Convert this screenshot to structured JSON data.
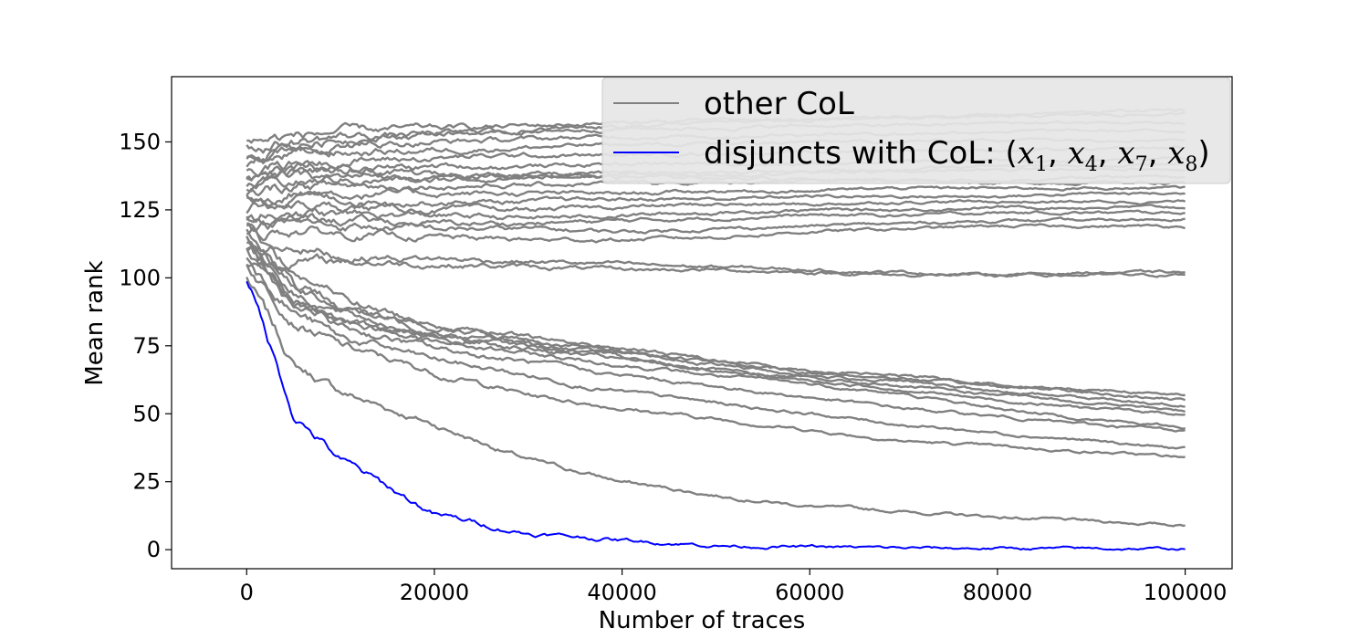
{
  "chart_data": {
    "type": "line",
    "title": "",
    "xlabel": "Number of traces",
    "ylabel": "Mean rank",
    "xlim": [
      -8000,
      105000
    ],
    "ylim": [
      -7,
      174
    ],
    "xticks": [
      0,
      20000,
      40000,
      60000,
      80000,
      100000
    ],
    "xtick_labels": [
      "0",
      "20000",
      "40000",
      "60000",
      "80000",
      "100000"
    ],
    "yticks": [
      0,
      25,
      50,
      75,
      100,
      125,
      150
    ],
    "ytick_labels": [
      "0",
      "25",
      "50",
      "75",
      "100",
      "125",
      "150"
    ],
    "grid": false,
    "legend": {
      "placement": "top-right",
      "entries": [
        {
          "label": "other CoL",
          "color": "#808080"
        },
        {
          "label_prefix": "disjuncts with CoL: (",
          "vars": [
            "x1",
            "x4",
            "x7",
            "x8"
          ],
          "label_suffix": ")",
          "color": "#0000ff"
        }
      ]
    },
    "x": [
      0,
      5000,
      10000,
      20000,
      30000,
      40000,
      50000,
      60000,
      70000,
      80000,
      90000,
      100000
    ],
    "series": [
      {
        "name": "disjuncts with CoL: (x1, x4, x7, x8)",
        "color": "#0000ff",
        "values": [
          100,
          50,
          33,
          13,
          6,
          3.5,
          1.5,
          1.0,
          0.6,
          0.5,
          0.4,
          0.3
        ]
      },
      {
        "group": "other CoL",
        "color": "#808080",
        "values": [
          100,
          68,
          58,
          46,
          33,
          25,
          20,
          16,
          14,
          12,
          10.5,
          9
        ]
      },
      {
        "group": "other CoL",
        "color": "#808080",
        "values": [
          105,
          85,
          75,
          65,
          57,
          52,
          48,
          44,
          40,
          38,
          36,
          34
        ]
      },
      {
        "group": "other CoL",
        "color": "#808080",
        "values": [
          108,
          88,
          78,
          70,
          64,
          58,
          54,
          50,
          46,
          43,
          40,
          37
        ]
      },
      {
        "group": "other CoL",
        "color": "#808080",
        "values": [
          110,
          90,
          82,
          74,
          69,
          64,
          60,
          56,
          52,
          49,
          46,
          44
        ]
      },
      {
        "group": "other CoL",
        "color": "#808080",
        "values": [
          112,
          93,
          85,
          76,
          72,
          68,
          64,
          61,
          57,
          52,
          48,
          45
        ]
      },
      {
        "group": "other CoL",
        "color": "#808080",
        "values": [
          115,
          95,
          87,
          79,
          74,
          70,
          66,
          62,
          59,
          55,
          52,
          50
        ]
      },
      {
        "group": "other CoL",
        "color": "#808080",
        "values": [
          113,
          92,
          84,
          78,
          75,
          71,
          66,
          63,
          60,
          57,
          54,
          51
        ]
      },
      {
        "group": "other CoL",
        "color": "#808080",
        "values": [
          118,
          98,
          90,
          80,
          76,
          72,
          68,
          64,
          62,
          58,
          56,
          53
        ]
      },
      {
        "group": "other CoL",
        "color": "#808080",
        "values": [
          120,
          102,
          93,
          82,
          78,
          74,
          70,
          66,
          64,
          61,
          58,
          55
        ]
      },
      {
        "group": "other CoL",
        "color": "#808080",
        "values": [
          116,
          97,
          88,
          83,
          77,
          73,
          69,
          65,
          63,
          60,
          59,
          57
        ]
      },
      {
        "group": "other CoL",
        "color": "#808080",
        "values": [
          105,
          106,
          106,
          105,
          104,
          103,
          103,
          102,
          101,
          101,
          101,
          101
        ]
      },
      {
        "group": "other CoL",
        "color": "#808080",
        "values": [
          110,
          112,
          108,
          107,
          106,
          105,
          104,
          103,
          102,
          101,
          102,
          102
        ]
      },
      {
        "group": "other CoL",
        "color": "#808080",
        "values": [
          115,
          118,
          116,
          115,
          114,
          114,
          115,
          117,
          118,
          119,
          119,
          119
        ]
      },
      {
        "group": "other CoL",
        "color": "#808080",
        "values": [
          118,
          120,
          119,
          118,
          118,
          117,
          118,
          119,
          120,
          121,
          121,
          122
        ]
      },
      {
        "group": "other CoL",
        "color": "#808080",
        "values": [
          120,
          122,
          121,
          120,
          120,
          121,
          122,
          123,
          123,
          124,
          124,
          124
        ]
      },
      {
        "group": "other CoL",
        "color": "#808080",
        "values": [
          122,
          124,
          123,
          123,
          122,
          123,
          124,
          125,
          125,
          126,
          126,
          126
        ]
      },
      {
        "group": "other CoL",
        "color": "#808080",
        "values": [
          125,
          127,
          126,
          125,
          125,
          126,
          127,
          127,
          128,
          128,
          128,
          128
        ]
      },
      {
        "group": "other CoL",
        "color": "#808080",
        "values": [
          128,
          130,
          129,
          128,
          128,
          129,
          129,
          130,
          130,
          130,
          131,
          131
        ]
      },
      {
        "group": "other CoL",
        "color": "#808080",
        "values": [
          130,
          132,
          131,
          131,
          131,
          131,
          132,
          132,
          133,
          133,
          133,
          133
        ]
      },
      {
        "group": "other CoL",
        "color": "#808080",
        "values": [
          132,
          134,
          134,
          134,
          134,
          135,
          135,
          136,
          136,
          136,
          137,
          137
        ]
      },
      {
        "group": "other CoL",
        "color": "#808080",
        "values": [
          135,
          137,
          137,
          137,
          138,
          138,
          138,
          139,
          139,
          140,
          140,
          140
        ]
      },
      {
        "group": "other CoL",
        "color": "#808080",
        "values": [
          138,
          140,
          140,
          141,
          141,
          142,
          142,
          142,
          143,
          143,
          143,
          144
        ]
      },
      {
        "group": "other CoL",
        "color": "#808080",
        "values": [
          140,
          142,
          143,
          144,
          145,
          145,
          146,
          146,
          147,
          147,
          147,
          148
        ]
      },
      {
        "group": "other CoL",
        "color": "#808080",
        "values": [
          142,
          145,
          146,
          147,
          148,
          149,
          149,
          150,
          150,
          151,
          151,
          151
        ]
      },
      {
        "group": "other CoL",
        "color": "#808080",
        "values": [
          145,
          148,
          149,
          150,
          151,
          152,
          152,
          153,
          153,
          154,
          154,
          154
        ]
      },
      {
        "group": "other CoL",
        "color": "#808080",
        "values": [
          148,
          150,
          152,
          153,
          154,
          155,
          155,
          156,
          156,
          157,
          157,
          157
        ]
      },
      {
        "group": "other CoL",
        "color": "#808080",
        "values": [
          150,
          152,
          154,
          155,
          156,
          157,
          158,
          158,
          159,
          159,
          160,
          160
        ]
      },
      {
        "group": "other CoL",
        "color": "#808080",
        "values": [
          146,
          149,
          151,
          153,
          154,
          156,
          157,
          158,
          159,
          160,
          161,
          162
        ]
      },
      {
        "group": "other CoL",
        "color": "#808080",
        "values": [
          137,
          139,
          139,
          138,
          138,
          137,
          137,
          136,
          136,
          135,
          135,
          135
        ]
      },
      {
        "group": "other CoL",
        "color": "#808080",
        "values": [
          133,
          135,
          136,
          136,
          137,
          138,
          139,
          139,
          140,
          141,
          141,
          142
        ]
      }
    ]
  }
}
